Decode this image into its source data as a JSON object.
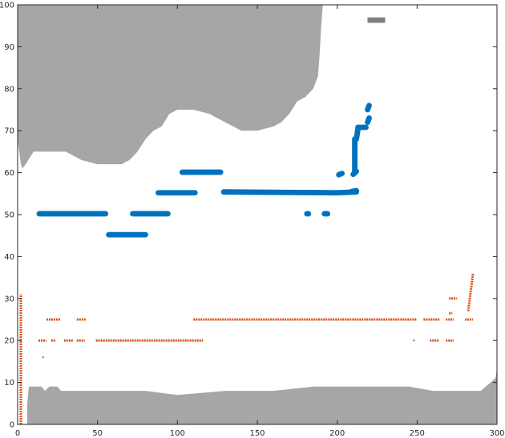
{
  "chart_data": {
    "type": "scatter",
    "title": "",
    "xlabel": "",
    "ylabel": "",
    "xlim": [
      0,
      300
    ],
    "ylim": [
      0,
      100
    ],
    "x_ticks": [
      0,
      50,
      100,
      150,
      200,
      250,
      300
    ],
    "y_ticks": [
      0,
      10,
      20,
      30,
      40,
      50,
      60,
      70,
      80,
      90,
      100
    ],
    "grid": false,
    "legend": "none",
    "colors": {
      "land": "#a6a6a6",
      "small_obstacle": "#7f7f7f",
      "series_blue": "#0072bd",
      "series_orange": "#d95319",
      "axis": "#262626"
    },
    "regions": [
      {
        "name": "obstacle-top",
        "points": [
          [
            0,
            100
          ],
          [
            191,
            100
          ],
          [
            190,
            95
          ],
          [
            189,
            88
          ],
          [
            188,
            83
          ],
          [
            185,
            80
          ],
          [
            180,
            78
          ],
          [
            175,
            77
          ],
          [
            170,
            74
          ],
          [
            165,
            72
          ],
          [
            160,
            71
          ],
          [
            150,
            70
          ],
          [
            140,
            70
          ],
          [
            130,
            72
          ],
          [
            120,
            74
          ],
          [
            110,
            75
          ],
          [
            100,
            75
          ],
          [
            95,
            74
          ],
          [
            90,
            71
          ],
          [
            85,
            70
          ],
          [
            80,
            68
          ],
          [
            75,
            65
          ],
          [
            70,
            63
          ],
          [
            65,
            62
          ],
          [
            60,
            62
          ],
          [
            50,
            62
          ],
          [
            40,
            63
          ],
          [
            30,
            65
          ],
          [
            20,
            65
          ],
          [
            10,
            65
          ],
          [
            5,
            62
          ],
          [
            3,
            61
          ],
          [
            2,
            62
          ],
          [
            1,
            65
          ],
          [
            0,
            68
          ]
        ]
      },
      {
        "name": "obstacle-bottom",
        "points": [
          [
            6,
            0
          ],
          [
            6,
            5
          ],
          [
            7,
            9
          ],
          [
            10,
            9
          ],
          [
            15,
            9
          ],
          [
            17,
            8
          ],
          [
            20,
            9
          ],
          [
            25,
            9
          ],
          [
            27,
            8
          ],
          [
            80,
            8
          ],
          [
            100,
            7
          ],
          [
            130,
            8
          ],
          [
            160,
            8
          ],
          [
            185,
            9
          ],
          [
            245,
            9
          ],
          [
            260,
            8
          ],
          [
            290,
            8
          ],
          [
            293,
            9
          ],
          [
            296,
            10
          ],
          [
            299,
            11
          ],
          [
            300,
            13
          ],
          [
            300,
            0
          ]
        ]
      },
      {
        "name": "obstacle-small",
        "points": [
          [
            219,
            97
          ],
          [
            230,
            97
          ],
          [
            230,
            95.7
          ],
          [
            219,
            95.7
          ]
        ]
      }
    ],
    "series": [
      {
        "color": "#0072bd",
        "thickness": 1.3,
        "segments": [
          [
            [
              13.5,
              50.2
            ],
            [
              55,
              50.2
            ]
          ],
          [
            [
              57,
              45.2
            ],
            [
              80,
              45.2
            ]
          ],
          [
            [
              72,
              50.2
            ],
            [
              94,
              50.2
            ]
          ],
          [
            [
              88,
              55.2
            ],
            [
              111,
              55.2
            ]
          ],
          [
            [
              103,
              60.1
            ],
            [
              127,
              60.1
            ]
          ],
          [
            [
              129,
              55.4
            ],
            [
              200,
              55.2
            ]
          ],
          [
            [
              200,
              55.2
            ],
            [
              212,
              55.4
            ]
          ],
          [
            [
              181,
              50.2
            ],
            [
              182,
              50.2
            ]
          ],
          [
            [
              192,
              50.2
            ],
            [
              194,
              50.2
            ]
          ],
          [
            [
              201,
              59.5
            ],
            [
              203,
              59.8
            ]
          ],
          [
            [
              209,
              55.5
            ],
            [
              212,
              55.7
            ]
          ],
          [
            [
              210,
              59.6
            ],
            [
              212,
              60.3
            ]
          ],
          [
            [
              211,
              60
            ],
            [
              211,
              68
            ]
          ],
          [
            [
              212,
              68
            ],
            [
              213,
              70.5
            ]
          ],
          [
            [
              213,
              70.8
            ],
            [
              218,
              70.8
            ]
          ],
          [
            [
              219,
              72
            ],
            [
              220,
              73
            ]
          ],
          [
            [
              219,
              75
            ],
            [
              220,
              76
            ]
          ]
        ]
      },
      {
        "color": "#d95319",
        "dotted": true,
        "segments": [
          [
            [
              2,
              0
            ],
            [
              2,
              31
            ]
          ],
          [
            [
              13,
              20
            ],
            [
              18,
              20
            ]
          ],
          [
            [
              21,
              20
            ],
            [
              24,
              20
            ]
          ],
          [
            [
              18,
              25
            ],
            [
              27,
              25
            ]
          ],
          [
            [
              29,
              20
            ],
            [
              35,
              20
            ]
          ],
          [
            [
              37,
              20
            ],
            [
              42,
              20
            ]
          ],
          [
            [
              37,
              25
            ],
            [
              43,
              25
            ]
          ],
          [
            [
              49,
              20
            ],
            [
              116,
              20
            ]
          ],
          [
            [
              110,
              25
            ],
            [
              250,
              25
            ]
          ],
          [
            [
              254,
              25
            ],
            [
              264,
              25
            ]
          ],
          [
            [
              258,
              20
            ],
            [
              264,
              20
            ]
          ],
          [
            [
              268,
              20
            ],
            [
              273,
              20
            ]
          ],
          [
            [
              268,
              25
            ],
            [
              273,
              25
            ]
          ],
          [
            [
              270,
              30
            ],
            [
              275,
              30
            ]
          ],
          [
            [
              280,
              25
            ],
            [
              285,
              25
            ]
          ],
          [
            [
              282,
              27
            ],
            [
              285,
              36
            ]
          ],
          [
            [
              248,
              20
            ],
            [
              248,
              20
            ]
          ],
          [
            [
              16,
              16
            ],
            [
              16,
              16
            ]
          ],
          [
            [
              270,
              26.5
            ],
            [
              272,
              26.5
            ]
          ]
        ]
      }
    ]
  }
}
